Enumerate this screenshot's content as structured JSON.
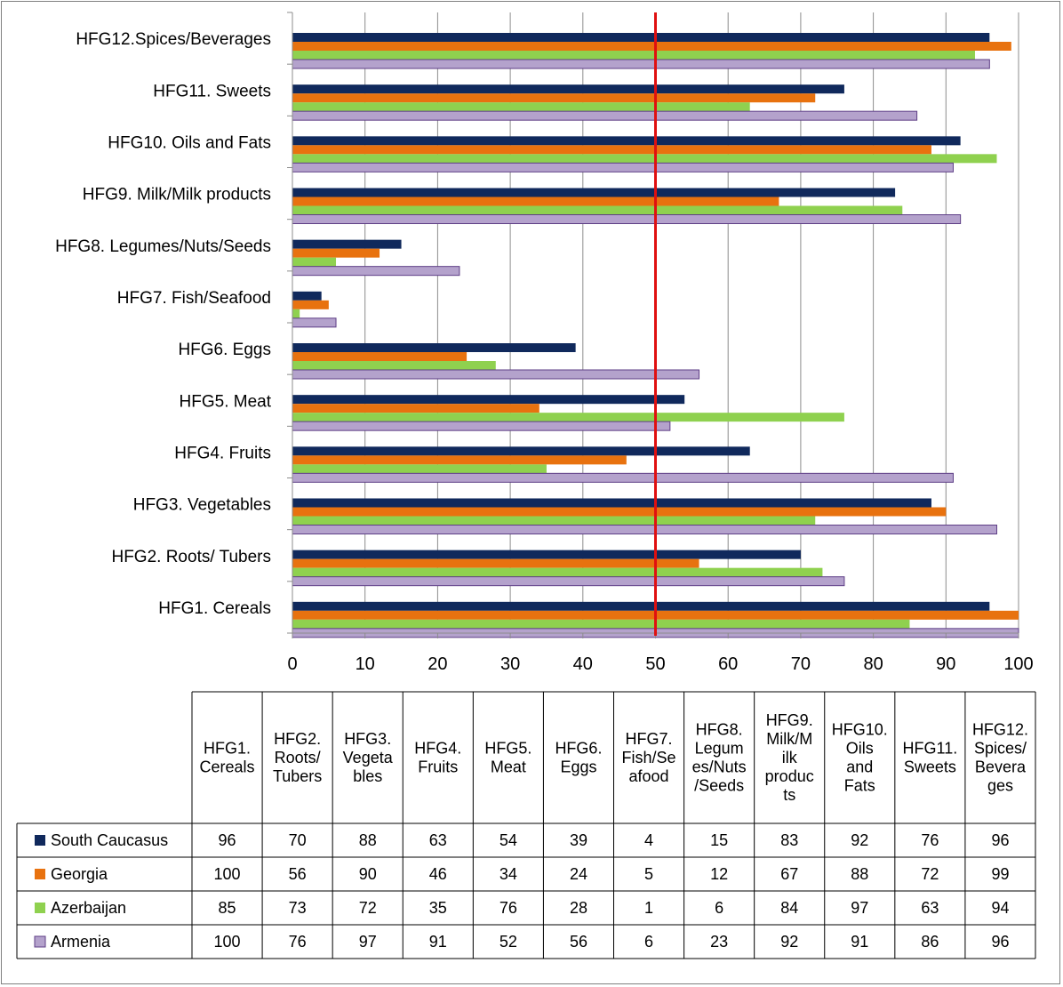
{
  "chart_data": {
    "type": "bar",
    "orientation": "horizontal",
    "categories": [
      "HFG1. Cereals",
      "HFG2. Roots/ Tubers",
      "HFG3. Vegetables",
      "HFG4. Fruits",
      "HFG5. Meat",
      "HFG6. Eggs",
      "HFG7. Fish/Seafood",
      "HFG8. Legumes/Nuts/Seeds",
      "HFG9. Milk/Milk products",
      "HFG10. Oils and Fats",
      "HFG11. Sweets",
      "HFG12.Spices/Beverages"
    ],
    "table_headers": [
      [
        "HFG1.",
        "Cereals"
      ],
      [
        "HFG2.",
        "Roots/",
        "Tubers"
      ],
      [
        "HFG3.",
        "Vegeta",
        "bles"
      ],
      [
        "HFG4.",
        "Fruits"
      ],
      [
        "HFG5.",
        "Meat"
      ],
      [
        "HFG6.",
        "Eggs"
      ],
      [
        "HFG7.",
        "Fish/Se",
        "afood"
      ],
      [
        "HFG8.",
        "Legum",
        "es/Nuts",
        "/Seeds"
      ],
      [
        "HFG9.",
        "Milk/M",
        "ilk",
        "produc",
        "ts"
      ],
      [
        "HFG10.",
        "Oils",
        "and",
        "Fats"
      ],
      [
        "HFG11.",
        "Sweets"
      ],
      [
        "HFG12.",
        "Spices/",
        "Bevera",
        "ges"
      ]
    ],
    "series": [
      {
        "name": "South Caucasus",
        "color": "#10295c",
        "values": [
          96,
          70,
          88,
          63,
          54,
          39,
          4,
          15,
          83,
          92,
          76,
          96
        ]
      },
      {
        "name": "Georgia",
        "color": "#e8720f",
        "values": [
          100,
          56,
          90,
          46,
          34,
          24,
          5,
          12,
          67,
          88,
          72,
          99
        ]
      },
      {
        "name": "Azerbaijan",
        "color": "#8fd14f",
        "values": [
          85,
          73,
          72,
          35,
          76,
          28,
          1,
          6,
          84,
          97,
          63,
          94
        ]
      },
      {
        "name": "Armenia",
        "color": "#b4a2cc",
        "values": [
          100,
          76,
          97,
          91,
          52,
          56,
          6,
          23,
          92,
          91,
          86,
          96
        ]
      }
    ],
    "xlim": [
      0,
      100
    ],
    "x_ticks": [
      0,
      10,
      20,
      30,
      40,
      50,
      60,
      70,
      80,
      90,
      100
    ],
    "reference_line": {
      "x": 50,
      "color": "#e01010"
    },
    "grid": true,
    "legend": "data-table",
    "title": "",
    "xlabel": "",
    "ylabel": ""
  }
}
